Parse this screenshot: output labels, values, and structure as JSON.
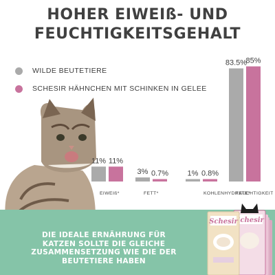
{
  "title_line1": "HOHER EIWEIß- UND",
  "title_line2": "FEUCHTIGKEITSGEHALT",
  "colors": {
    "grey": "#aaaaaa",
    "pink": "#c8739d",
    "green_band": "#85c4a8"
  },
  "bottom_text": {
    "line1": "DIE IDEALE ERNÄHRUNG FÜR",
    "line2": "KATZEN SOLLTE DIE GLEICHE",
    "line3": "ZUSAMMENSETZUNG WIE DIE DER",
    "line4": "BEUTETIERE HABEN"
  },
  "product": {
    "brand": "Schesir"
  },
  "chart_data": {
    "type": "bar",
    "categories": [
      "EIWEIß*",
      "FETT*",
      "KOHLENHYDRATE*",
      "FEUCHTIGKEIT"
    ],
    "series": [
      {
        "name": "WILDE BEUTETIERE",
        "values": [
          11,
          3,
          1,
          83.5
        ],
        "labels": [
          "11%",
          "3%",
          "1%",
          "83.5%"
        ]
      },
      {
        "name": "SCHESIR HÄHNCHEN MIT SCHINKEN IN GELEE",
        "values": [
          11,
          0.7,
          0.8,
          85
        ],
        "labels": [
          "11%",
          "0.7%",
          "0.8%",
          "85%"
        ]
      }
    ],
    "legend_position": "top-left",
    "grid": false
  }
}
